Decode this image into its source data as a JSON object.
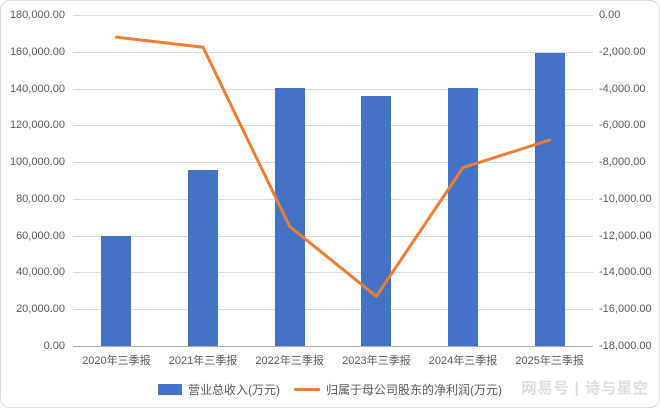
{
  "chart_data": {
    "type": "bar+line",
    "categories": [
      "2020年三季报",
      "2021年三季报",
      "2022年三季报",
      "2023年三季报",
      "2024年三季报",
      "2025年三季报"
    ],
    "series": [
      {
        "name": "营业总收入(万元)",
        "type": "bar",
        "axis": "left",
        "color": "#4472C4",
        "values": [
          59600,
          95500,
          140600,
          135800,
          140600,
          159300
        ]
      },
      {
        "name": "归属于母公司股东的净利润(万元)",
        "type": "line",
        "axis": "right",
        "color": "#ED7D31",
        "values": [
          -1200,
          -1750,
          -11500,
          -15300,
          -8300,
          -6800
        ]
      }
    ],
    "left_axis": {
      "min": 0,
      "max": 180000,
      "step": 20000,
      "ticks": [
        "180,000.00",
        "160,000.00",
        "140,000.00",
        "120,000.00",
        "100,000.00",
        "80,000.00",
        "60,000.00",
        "40,000.00",
        "20,000.00",
        "0.00"
      ]
    },
    "right_axis": {
      "min": -18000,
      "max": 0,
      "step": 2000,
      "ticks": [
        "0.00",
        "-2,000.00",
        "-4,000.00",
        "-6,000.00",
        "-8,000.00",
        "-10,000.00",
        "-12,000.00",
        "-14,000.00",
        "-16,000.00",
        "-18,000.00"
      ]
    },
    "grid": true,
    "legend_position": "bottom",
    "colors": {
      "gridline": "#d9d9d9",
      "axis_line": "#ababab",
      "tick_text": "#595959"
    }
  },
  "watermark": {
    "text": "网易号 | 诗与星空"
  }
}
